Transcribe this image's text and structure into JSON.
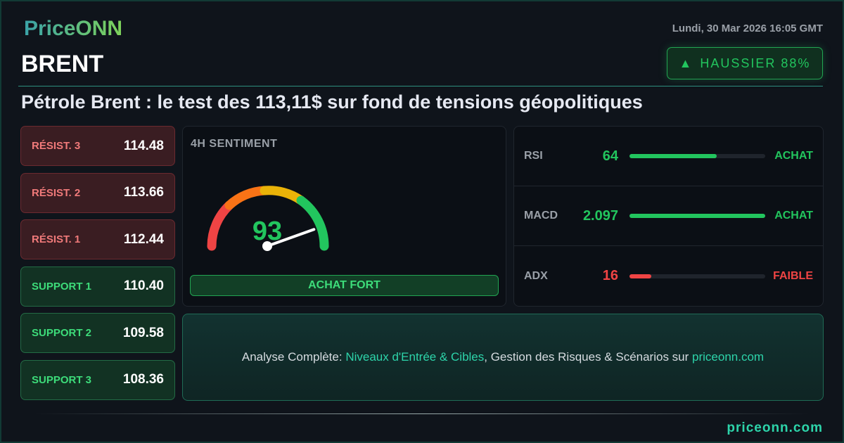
{
  "brand": {
    "logo": "PriceONN",
    "footer": "priceonn.com"
  },
  "header": {
    "date": "Lundi, 30 Mar 2026 16:05 GMT",
    "symbol": "BRENT",
    "headline": "Pétrole Brent : le test des 113,11$ sur fond de tensions géopolitiques"
  },
  "bias": {
    "icon": "triangle-up-icon",
    "label": "HAUSSIER 88%",
    "color": "#22c55e"
  },
  "levels": [
    {
      "label": "RÉSIST. 3",
      "value": "114.48",
      "type": "resistance"
    },
    {
      "label": "RÉSIST. 2",
      "value": "113.66",
      "type": "resistance"
    },
    {
      "label": "RÉSIST. 1",
      "value": "112.44",
      "type": "resistance"
    },
    {
      "label": "SUPPORT 1",
      "value": "110.40",
      "type": "support"
    },
    {
      "label": "SUPPORT 2",
      "value": "109.58",
      "type": "support"
    },
    {
      "label": "SUPPORT 3",
      "value": "108.36",
      "type": "support"
    }
  ],
  "sentiment": {
    "title": "4H SENTIMENT",
    "value": "93",
    "gauge_percent": 93,
    "signal": "ACHAT FORT"
  },
  "indicators": [
    {
      "name": "RSI",
      "value": "64",
      "fill_percent": 64,
      "signal": "ACHAT",
      "color": "#22c55e"
    },
    {
      "name": "MACD",
      "value": "2.097",
      "fill_percent": 100,
      "signal": "ACHAT",
      "color": "#22c55e"
    },
    {
      "name": "ADX",
      "value": "16",
      "fill_percent": 16,
      "signal": "FAIBLE",
      "color": "#ef4444"
    }
  ],
  "cta": {
    "prefix": "Analyse Complète: ",
    "highlight": "Niveaux d'Entrée & Cibles",
    "middle": ", Gestion des Risques & Scénarios sur ",
    "link": "priceonn.com"
  }
}
